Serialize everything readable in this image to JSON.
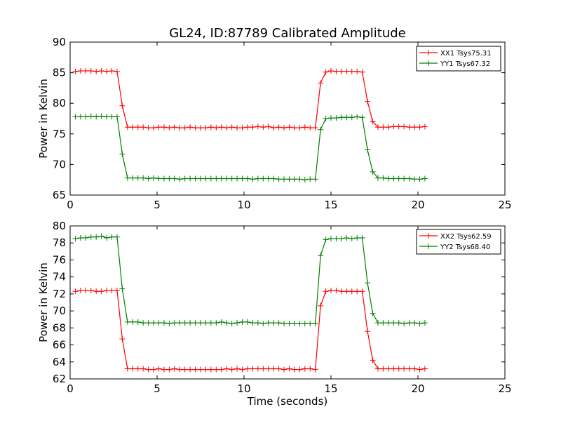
{
  "title": "GL24, ID:87789 Calibrated Amplitude",
  "chart_data": [
    {
      "type": "line",
      "title": "GL24, ID:87789 Calibrated Amplitude",
      "xlabel": "",
      "ylabel": "Power in Kelvin",
      "xlim": [
        0,
        25
      ],
      "ylim": [
        65,
        90
      ],
      "xticks": [
        0,
        5,
        10,
        15,
        20,
        25
      ],
      "yticks": [
        65,
        70,
        75,
        80,
        85,
        90
      ],
      "grid": false,
      "legend_position": "top-right",
      "x": [
        0.3,
        0.6,
        0.9,
        1.2,
        1.5,
        1.8,
        2.1,
        2.4,
        2.7,
        3.0,
        3.3,
        3.6,
        3.9,
        4.2,
        4.5,
        4.8,
        5.1,
        5.4,
        5.7,
        6.0,
        6.3,
        6.6,
        6.9,
        7.2,
        7.5,
        7.8,
        8.1,
        8.4,
        8.7,
        9.0,
        9.3,
        9.6,
        9.9,
        10.2,
        10.5,
        10.8,
        11.1,
        11.4,
        11.7,
        12.0,
        12.3,
        12.6,
        12.9,
        13.2,
        13.5,
        13.8,
        14.1,
        14.4,
        14.7,
        15.0,
        15.3,
        15.6,
        15.9,
        16.2,
        16.5,
        16.8,
        17.1,
        17.4,
        17.7,
        18.0,
        18.3,
        18.6,
        18.9,
        19.2,
        19.5,
        19.8,
        20.1,
        20.4
      ],
      "series": [
        {
          "name": "XX1 Tsys75.31",
          "color": "#ff0000",
          "values": [
            85.2,
            85.3,
            85.3,
            85.3,
            85.2,
            85.3,
            85.2,
            85.3,
            85.2,
            79.6,
            76.1,
            76.1,
            76.1,
            76.1,
            76.0,
            76.0,
            76.1,
            76.1,
            76.0,
            76.1,
            76.0,
            76.0,
            76.1,
            76.0,
            76.0,
            76.0,
            76.1,
            76.0,
            76.1,
            76.0,
            76.1,
            76.0,
            76.0,
            76.1,
            76.1,
            76.2,
            76.1,
            76.2,
            76.0,
            76.1,
            76.0,
            76.1,
            76.0,
            76.0,
            76.1,
            76.0,
            76.0,
            83.3,
            85.1,
            85.3,
            85.2,
            85.2,
            85.2,
            85.2,
            85.2,
            85.1,
            80.3,
            77.0,
            76.1,
            76.1,
            76.1,
            76.2,
            76.2,
            76.2,
            76.1,
            76.1,
            76.1,
            76.2
          ]
        },
        {
          "name": "YY1 Tsys67.32",
          "color": "#008000",
          "values": [
            77.8,
            77.8,
            77.8,
            77.9,
            77.8,
            77.9,
            77.8,
            77.8,
            77.8,
            71.7,
            67.8,
            67.8,
            67.8,
            67.8,
            67.7,
            67.8,
            67.7,
            67.7,
            67.7,
            67.7,
            67.6,
            67.7,
            67.7,
            67.7,
            67.7,
            67.7,
            67.7,
            67.7,
            67.7,
            67.7,
            67.7,
            67.7,
            67.7,
            67.7,
            67.6,
            67.7,
            67.7,
            67.7,
            67.7,
            67.6,
            67.6,
            67.6,
            67.6,
            67.6,
            67.5,
            67.6,
            67.6,
            75.7,
            77.5,
            77.6,
            77.6,
            77.7,
            77.7,
            77.7,
            77.8,
            77.7,
            72.4,
            68.8,
            67.8,
            67.8,
            67.7,
            67.7,
            67.7,
            67.7,
            67.7,
            67.6,
            67.6,
            67.7
          ]
        }
      ]
    },
    {
      "type": "line",
      "title": "",
      "xlabel": "Time (seconds)",
      "ylabel": "Power in Kelvin",
      "xlim": [
        0,
        25
      ],
      "ylim": [
        62,
        80
      ],
      "xticks": [
        0,
        5,
        10,
        15,
        20,
        25
      ],
      "yticks": [
        62,
        64,
        66,
        68,
        70,
        72,
        74,
        76,
        78,
        80
      ],
      "grid": false,
      "legend_position": "top-right",
      "x": [
        0.3,
        0.6,
        0.9,
        1.2,
        1.5,
        1.8,
        2.1,
        2.4,
        2.7,
        3.0,
        3.3,
        3.6,
        3.9,
        4.2,
        4.5,
        4.8,
        5.1,
        5.4,
        5.7,
        6.0,
        6.3,
        6.6,
        6.9,
        7.2,
        7.5,
        7.8,
        8.1,
        8.4,
        8.7,
        9.0,
        9.3,
        9.6,
        9.9,
        10.2,
        10.5,
        10.8,
        11.1,
        11.4,
        11.7,
        12.0,
        12.3,
        12.6,
        12.9,
        13.2,
        13.5,
        13.8,
        14.1,
        14.4,
        14.7,
        15.0,
        15.3,
        15.6,
        15.9,
        16.2,
        16.5,
        16.8,
        17.1,
        17.4,
        17.7,
        18.0,
        18.3,
        18.6,
        18.9,
        19.2,
        19.5,
        19.8,
        20.1,
        20.4
      ],
      "series": [
        {
          "name": "XX2 Tsys62.59",
          "color": "#ff0000",
          "values": [
            72.3,
            72.4,
            72.4,
            72.4,
            72.3,
            72.3,
            72.4,
            72.4,
            72.4,
            66.7,
            63.2,
            63.2,
            63.2,
            63.2,
            63.1,
            63.1,
            63.2,
            63.1,
            63.1,
            63.2,
            63.1,
            63.1,
            63.1,
            63.1,
            63.1,
            63.1,
            63.1,
            63.1,
            63.1,
            63.2,
            63.1,
            63.2,
            63.1,
            63.2,
            63.2,
            63.2,
            63.2,
            63.2,
            63.2,
            63.2,
            63.1,
            63.2,
            63.1,
            63.1,
            63.2,
            63.2,
            63.1,
            70.6,
            72.3,
            72.4,
            72.4,
            72.3,
            72.3,
            72.3,
            72.3,
            72.3,
            67.6,
            64.2,
            63.2,
            63.2,
            63.2,
            63.2,
            63.2,
            63.2,
            63.2,
            63.2,
            63.1,
            63.2
          ]
        },
        {
          "name": "YY2 Tsys68.40",
          "color": "#008000",
          "values": [
            78.5,
            78.6,
            78.6,
            78.7,
            78.7,
            78.8,
            78.6,
            78.7,
            78.7,
            72.6,
            68.7,
            68.7,
            68.7,
            68.6,
            68.6,
            68.6,
            68.6,
            68.6,
            68.5,
            68.6,
            68.6,
            68.6,
            68.6,
            68.6,
            68.6,
            68.6,
            68.6,
            68.6,
            68.7,
            68.6,
            68.5,
            68.6,
            68.7,
            68.7,
            68.6,
            68.6,
            68.5,
            68.6,
            68.6,
            68.6,
            68.5,
            68.5,
            68.5,
            68.5,
            68.5,
            68.5,
            68.5,
            76.5,
            78.4,
            78.5,
            78.5,
            78.5,
            78.6,
            78.5,
            78.6,
            78.6,
            73.3,
            69.7,
            68.6,
            68.6,
            68.6,
            68.6,
            68.6,
            68.5,
            68.6,
            68.6,
            68.5,
            68.6
          ]
        }
      ]
    }
  ]
}
